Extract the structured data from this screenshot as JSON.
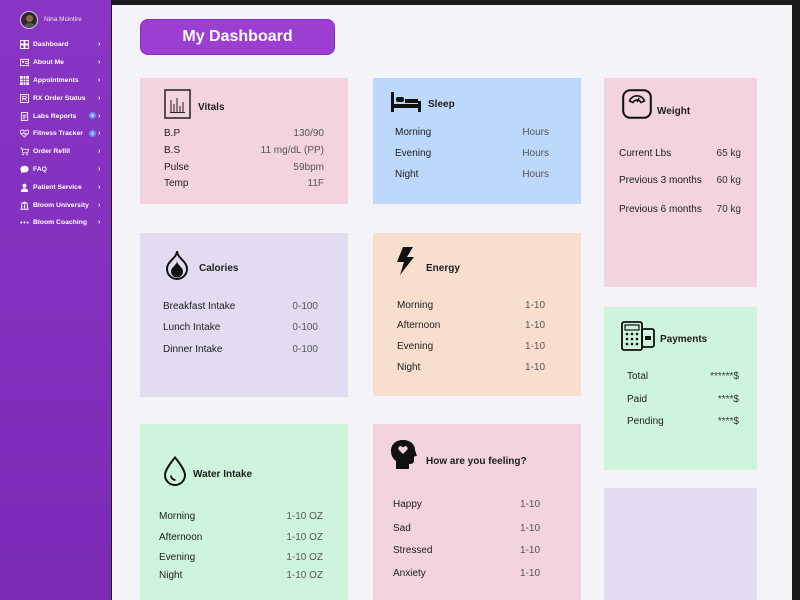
{
  "profile": {
    "name": "Nina Mcintire"
  },
  "nav": [
    {
      "label": "Dashboard",
      "icon": "grid-icon"
    },
    {
      "label": "About Me",
      "icon": "id-card-icon"
    },
    {
      "label": "Appointments",
      "icon": "calendar-grid-icon"
    },
    {
      "label": "RX Order Status",
      "icon": "prescription-icon"
    },
    {
      "label": "Labs Reports",
      "icon": "lab-report-icon",
      "badge": "5"
    },
    {
      "label": "Fitness Tracker",
      "icon": "heart-pulse-icon",
      "badge": "2"
    },
    {
      "label": "Order Refill",
      "icon": "cart-icon"
    },
    {
      "label": "FAQ",
      "icon": "chat-bubble-icon"
    },
    {
      "label": "Patient Service",
      "icon": "person-service-icon"
    },
    {
      "label": "Bloom University",
      "icon": "university-icon"
    },
    {
      "label": "Bloom Coaching",
      "icon": "dots-icon"
    }
  ],
  "page": {
    "title": "My Dashboard"
  },
  "colors": {
    "sidebar": "#8a35c4",
    "title_button": "#9b3ed1",
    "pink_card": "#f2d3df",
    "blue_card": "#bcd8fb",
    "purple_card": "#e3dcf1",
    "peach_card": "#f8dfcd",
    "green_card": "#cff4dc"
  },
  "cards": {
    "vitals": {
      "title": "Vitals",
      "rows": [
        {
          "label": "B.P",
          "value": "130/90"
        },
        {
          "label": "B.S",
          "value": "11 mg/dL (PP)"
        },
        {
          "label": "Pulse",
          "value": "59bpm"
        },
        {
          "label": "Temp",
          "value": "11F"
        }
      ]
    },
    "sleep": {
      "title": "Sleep",
      "rows": [
        {
          "label": "Morning",
          "value": "Hours"
        },
        {
          "label": "Evening",
          "value": "Hours"
        },
        {
          "label": "Night",
          "value": "Hours"
        }
      ]
    },
    "weight": {
      "title": "Weight",
      "rows": [
        {
          "label": "Current Lbs",
          "value": "65 kg"
        },
        {
          "label": "Previous 3 months",
          "value": "60 kg"
        },
        {
          "label": "Previous 6 months",
          "value": "70 kg"
        }
      ]
    },
    "calories": {
      "title": "Calories",
      "rows": [
        {
          "label": "Breakfast Intake",
          "value": "0-100"
        },
        {
          "label": "Lunch Intake",
          "value": "0-100"
        },
        {
          "label": "Dinner Intake",
          "value": "0-100"
        }
      ]
    },
    "energy": {
      "title": "Energy",
      "rows": [
        {
          "label": "Morning",
          "value": "1-10"
        },
        {
          "label": "Afternoon",
          "value": "1-10"
        },
        {
          "label": "Evening",
          "value": "1-10"
        },
        {
          "label": "Night",
          "value": "1-10"
        }
      ]
    },
    "payments": {
      "title": "Payments",
      "rows": [
        {
          "label": "Total",
          "value": "******$"
        },
        {
          "label": "Paid",
          "value": "****$"
        },
        {
          "label": "Pending",
          "value": "****$"
        }
      ]
    },
    "water": {
      "title": "Water Intake",
      "rows": [
        {
          "label": "Morning",
          "value": "1-10 OZ"
        },
        {
          "label": "Afternoon",
          "value": "1-10 OZ"
        },
        {
          "label": "Evening",
          "value": "1-10 OZ"
        },
        {
          "label": "Night",
          "value": "1-10 OZ"
        }
      ]
    },
    "feeling": {
      "title": "How are you feeling?",
      "rows": [
        {
          "label": "Happy",
          "value": "1-10"
        },
        {
          "label": "Sad",
          "value": "1-10"
        },
        {
          "label": "Stressed",
          "value": "1-10"
        },
        {
          "label": "Anxiety",
          "value": "1-10"
        }
      ]
    }
  }
}
